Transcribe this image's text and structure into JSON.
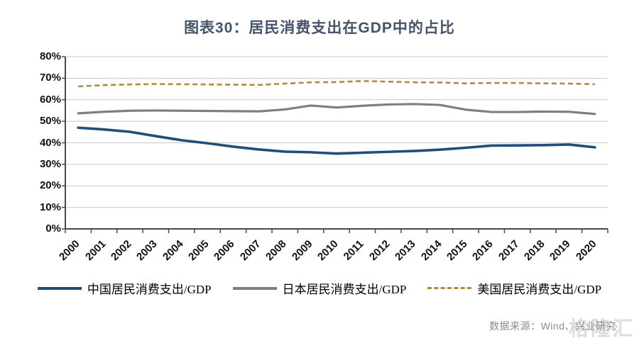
{
  "title": "图表30：居民消费支出在GDP中的占比",
  "source_note": "数据来源：Wind、兴业研究",
  "watermark": "格隆汇",
  "colors": {
    "title": "#44546A",
    "gridline": "#C8C8C8",
    "axis": "#4A4A4A",
    "tick_text": "#111111",
    "source_text": "#8A8A8A",
    "watermark_text": "#C3C3C3",
    "china": "#1F4E79",
    "japan": "#7F7F7F",
    "us": "#AE8C3F"
  },
  "chart_data": {
    "type": "line",
    "title": "图表30：居民消费支出在GDP中的占比",
    "x": [
      "2000",
      "2001",
      "2002",
      "2003",
      "2004",
      "2005",
      "2006",
      "2007",
      "2008",
      "2009",
      "2010",
      "2011",
      "2012",
      "2013",
      "2014",
      "2015",
      "2016",
      "2017",
      "2018",
      "2019",
      "2020"
    ],
    "xlabel": "",
    "ylabel": "",
    "ylim": [
      0,
      80
    ],
    "ytick_step": 10,
    "ytick_labels": [
      "0%",
      "10%",
      "20%",
      "30%",
      "40%",
      "50%",
      "60%",
      "70%",
      "80%"
    ],
    "grid": true,
    "legend_position": "bottom",
    "series": [
      {
        "name": "中国居民消费支出/GDP",
        "color": "#1F4E79",
        "style": "solid",
        "values": [
          47.0,
          46.2,
          45.1,
          43.1,
          41.2,
          39.8,
          38.2,
          36.9,
          35.9,
          35.6,
          35.0,
          35.4,
          35.8,
          36.2,
          36.8,
          37.7,
          38.7,
          38.8,
          38.9,
          39.2,
          37.9
        ]
      },
      {
        "name": "日本居民消费支出/GDP",
        "color": "#7F7F7F",
        "style": "solid",
        "values": [
          53.7,
          54.4,
          54.9,
          55.0,
          54.9,
          54.8,
          54.7,
          54.6,
          55.5,
          57.3,
          56.4,
          57.2,
          57.8,
          58.0,
          57.6,
          55.4,
          54.3,
          54.3,
          54.5,
          54.4,
          53.4
        ]
      },
      {
        "name": "美国居民消费支出/GDP",
        "color": "#AE8C3F",
        "style": "dashed",
        "values": [
          66.2,
          66.8,
          67.1,
          67.3,
          67.2,
          67.1,
          67.0,
          66.9,
          67.5,
          68.1,
          68.2,
          68.7,
          68.4,
          68.1,
          68.0,
          67.6,
          67.8,
          67.8,
          67.6,
          67.5,
          67.2
        ]
      }
    ]
  }
}
